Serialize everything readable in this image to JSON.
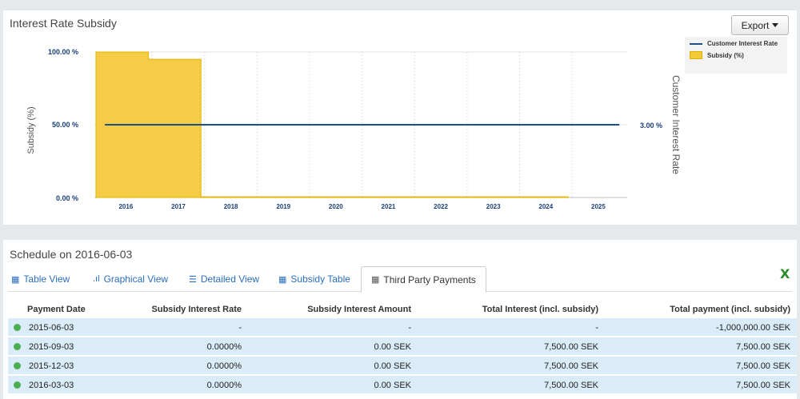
{
  "chart_panel": {
    "title": "Interest Rate Subsidy",
    "export_label": "Export"
  },
  "chart_data": {
    "type": "area",
    "x_ticks": [
      "2016",
      "2017",
      "2018",
      "2019",
      "2020",
      "2021",
      "2022",
      "2023",
      "2024",
      "2025"
    ],
    "left_axis": {
      "label": "Subsidy (%)",
      "ticks": [
        "0.00 %",
        "50.00 %",
        "100.00 %"
      ],
      "range": [
        0,
        100
      ]
    },
    "right_axis": {
      "label": "Customer Interest Rate",
      "ticks": [
        "3.00 %"
      ]
    },
    "legend": [
      "Customer Interest Rate",
      "Subsidy (%)"
    ],
    "legend_position": "top-right",
    "series": [
      {
        "name": "Subsidy (%)",
        "type": "step-area",
        "color": "#f3c93c",
        "points": [
          {
            "x": 2015.43,
            "y": 100
          },
          {
            "x": 2016.43,
            "y": 100
          },
          {
            "x": 2016.43,
            "y": 95
          },
          {
            "x": 2017.43,
            "y": 95
          },
          {
            "x": 2017.43,
            "y": 0.5
          },
          {
            "x": 2024.43,
            "y": 0.5
          }
        ]
      },
      {
        "name": "Customer Interest Rate",
        "type": "line",
        "color": "#1a4f8a",
        "x_start": 2015.6,
        "x_end": 2025.4,
        "value": 3.0
      }
    ],
    "grid": "vertical dotted"
  },
  "schedule_panel": {
    "title": "Schedule on 2016-06-03",
    "tabs": [
      {
        "label": "Table View",
        "icon": "table-icon"
      },
      {
        "label": "Graphical View",
        "icon": "bar-chart-icon"
      },
      {
        "label": "Detailed View",
        "icon": "list-icon"
      },
      {
        "label": "Subsidy Table",
        "icon": "table-icon"
      },
      {
        "label": "Third Party Payments",
        "icon": "table-icon",
        "active": true
      }
    ],
    "export_icon": "excel-icon",
    "columns": [
      "Payment Date",
      "Subsidy Interest Rate",
      "Subsidy Interest Amount",
      "Total Interest (incl. subsidy)",
      "Total payment (incl. subsidy)"
    ],
    "rows": [
      {
        "date": "2015-06-03",
        "rate": "-",
        "amount": "-",
        "total_interest": "-",
        "total_payment": "-1,000,000.00 SEK"
      },
      {
        "date": "2015-09-03",
        "rate": "0.0000%",
        "amount": "0.00 SEK",
        "total_interest": "7,500.00 SEK",
        "total_payment": "7,500.00 SEK"
      },
      {
        "date": "2015-12-03",
        "rate": "0.0000%",
        "amount": "0.00 SEK",
        "total_interest": "7,500.00 SEK",
        "total_payment": "7,500.00 SEK"
      },
      {
        "date": "2016-03-03",
        "rate": "0.0000%",
        "amount": "0.00 SEK",
        "total_interest": "7,500.00 SEK",
        "total_payment": "7,500.00 SEK"
      }
    ],
    "status_color": "#4caf50"
  }
}
